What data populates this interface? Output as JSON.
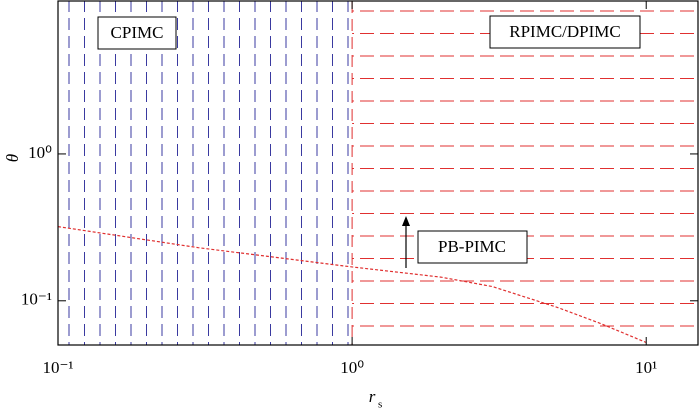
{
  "chart_data": {
    "type": "region-line",
    "x_label": "r",
    "x_label_subscript": "s",
    "y_label": "θ",
    "xscale": "log",
    "yscale": "log",
    "xlim": [
      0.1,
      15
    ],
    "ylim": [
      0.05,
      11
    ],
    "xticks": [
      {
        "value": 0.1,
        "label": "10⁻¹"
      },
      {
        "value": 1,
        "label": "10⁰"
      },
      {
        "value": 10,
        "label": "10¹"
      }
    ],
    "yticks": [
      {
        "value": 0.1,
        "label": "10⁻¹"
      },
      {
        "value": 1,
        "label": "10⁰"
      }
    ],
    "regions": [
      {
        "label": "CPIMC",
        "x": [
          0.1,
          1
        ],
        "color": "#3a3aa0",
        "hatch": "vertical"
      },
      {
        "label": "RPIMC/DPIMC",
        "x": [
          1,
          15
        ],
        "color": "#e03030",
        "hatch": "horizontal"
      }
    ],
    "series": [
      {
        "name": "PB-PIMC",
        "color": "#e03030",
        "x": [
          0.1,
          0.3,
          1,
          2,
          3,
          5,
          7,
          10
        ],
        "values": [
          0.32,
          0.23,
          0.17,
          0.145,
          0.125,
          0.09,
          0.07,
          0.052
        ]
      }
    ]
  }
}
